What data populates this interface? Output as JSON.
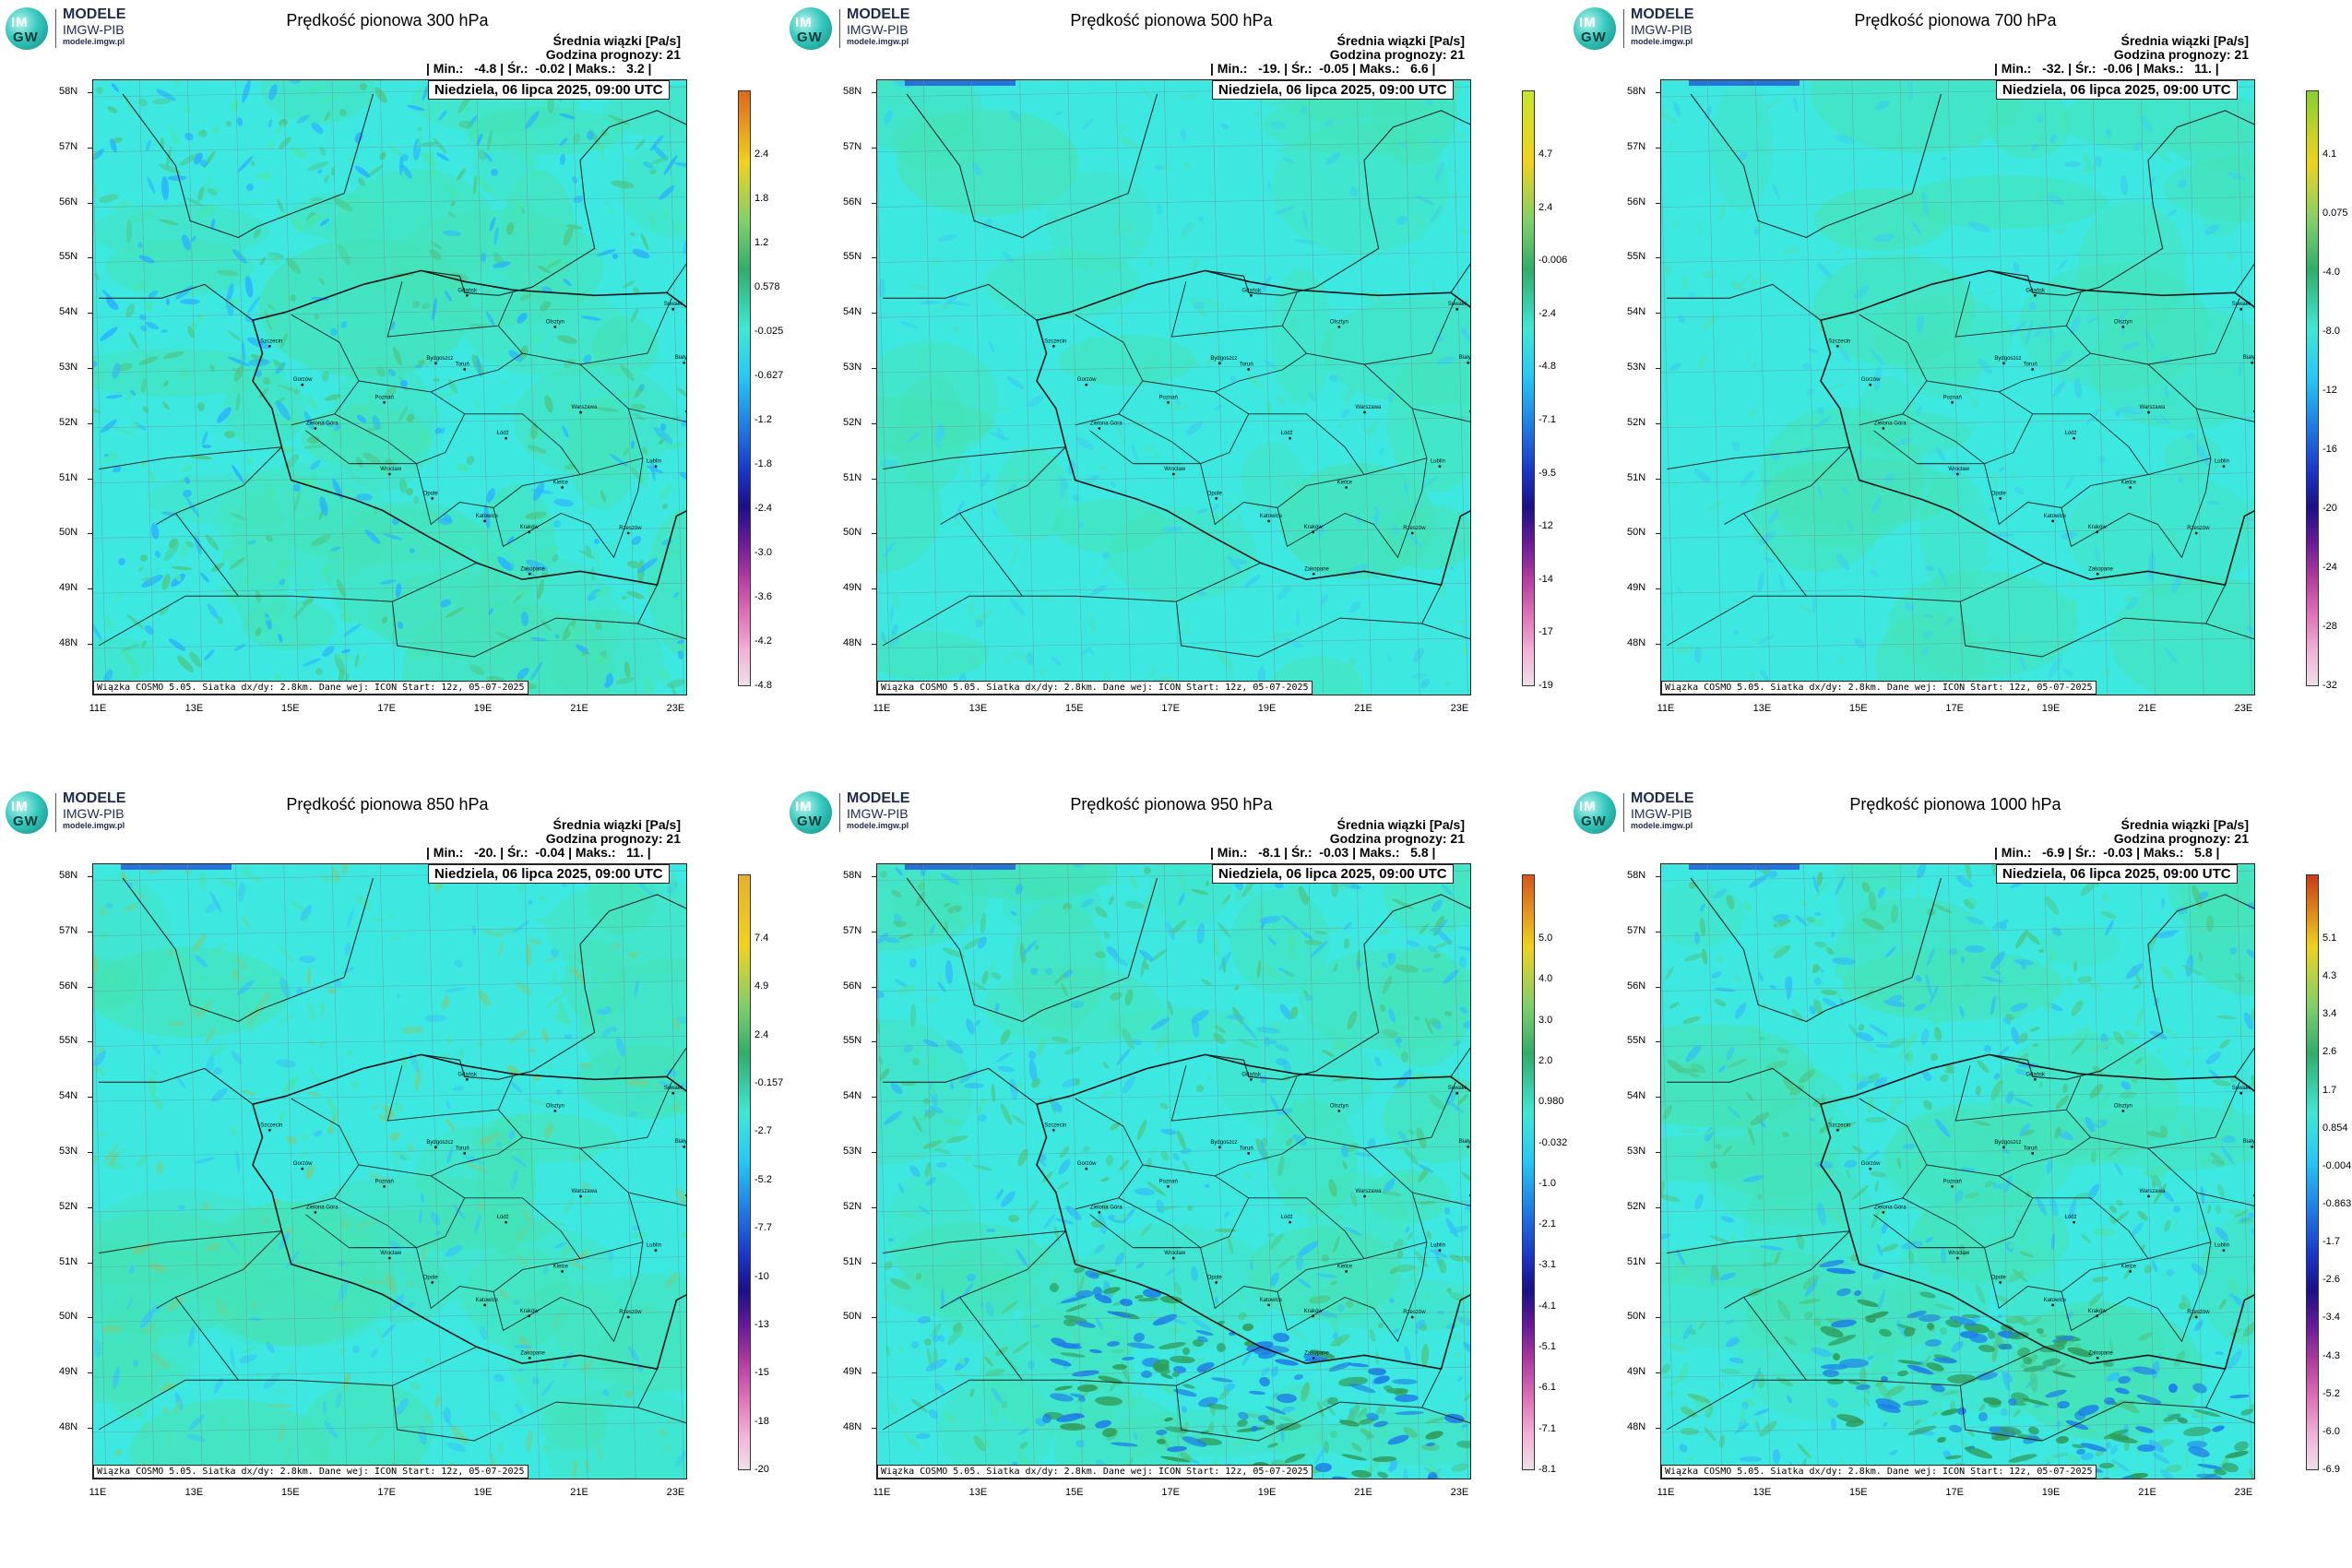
{
  "app": {
    "brand": "MODELE",
    "org": "IMGW-PIB",
    "site": "modele.imgw.pl",
    "logo_text_top": "IM",
    "logo_text_bottom": "GW"
  },
  "common": {
    "mean_label": "Średnia wiązki [Pa/s]",
    "forecast_hour": "Godzina prognozy: 21",
    "date": "Niedziela, 06 lipca 2025, 09:00 UTC",
    "footer": "Wiązka COSMO 5.05. Siatka dx/dy: 2.8km. Dane wej: ICON Start: 12z, 05-07-2025",
    "lat_labels": [
      "58N",
      "57N",
      "56N",
      "55N",
      "54N",
      "53N",
      "52N",
      "51N",
      "50N",
      "49N",
      "48N"
    ],
    "lon_labels": [
      "11E",
      "13E",
      "15E",
      "17E",
      "19E",
      "21E",
      "23E"
    ]
  },
  "cities": [
    {
      "name": "Gdańsk",
      "lon": 18.65,
      "lat": 54.35
    },
    {
      "name": "Olsztyn",
      "lon": 20.48,
      "lat": 53.78
    },
    {
      "name": "Suwałki",
      "lon": 22.93,
      "lat": 54.1
    },
    {
      "name": "Białystok",
      "lon": 23.16,
      "lat": 53.13
    },
    {
      "name": "Szczecin",
      "lon": 14.55,
      "lat": 53.43
    },
    {
      "name": "Gorzów",
      "lon": 15.23,
      "lat": 52.73
    },
    {
      "name": "Bydgoszcz",
      "lon": 18.0,
      "lat": 53.12
    },
    {
      "name": "Toruń",
      "lon": 18.6,
      "lat": 53.01
    },
    {
      "name": "Poznań",
      "lon": 16.93,
      "lat": 52.41
    },
    {
      "name": "Warszawa",
      "lon": 21.01,
      "lat": 52.23
    },
    {
      "name": "Zielona Góra",
      "lon": 15.5,
      "lat": 51.94
    },
    {
      "name": "Łódź",
      "lon": 19.46,
      "lat": 51.76
    },
    {
      "name": "Lublin",
      "lon": 22.57,
      "lat": 51.25
    },
    {
      "name": "Wrocław",
      "lon": 17.04,
      "lat": 51.11
    },
    {
      "name": "Opole",
      "lon": 17.93,
      "lat": 50.67
    },
    {
      "name": "Kielce",
      "lon": 20.63,
      "lat": 50.87
    },
    {
      "name": "Katowice",
      "lon": 19.02,
      "lat": 50.26
    },
    {
      "name": "Kraków",
      "lon": 19.94,
      "lat": 50.06
    },
    {
      "name": "Rzeszów",
      "lon": 22.0,
      "lat": 50.04
    },
    {
      "name": "Zakopane",
      "lon": 19.95,
      "lat": 49.3
    }
  ],
  "panels": [
    {
      "title": "Prędkość pionowa 300 hPa",
      "stats": "| Min.:   -4.8 | Śr.:  -0.02 | Maks.:   3.2 |",
      "colorbar_ticks": [
        "2.4",
        "1.8",
        "1.2",
        "0.578",
        "-0.025",
        "-0.627",
        "-1.2",
        "-1.8",
        "-2.4",
        "-3.0",
        "-3.6",
        "-4.2",
        "-4.8"
      ],
      "colorbar_max": "#e0661a",
      "style": "rough"
    },
    {
      "title": "Prędkość pionowa 500 hPa",
      "stats": "| Min.:   -19. | Śr.:  -0.05 | Maks.:   6.6 |",
      "colorbar_ticks": [
        "4.7",
        "2.4",
        "-0.006",
        "-2.4",
        "-4.8",
        "-7.1",
        "-9.5",
        "-12",
        "-14",
        "-17",
        "-19"
      ],
      "colorbar_max": "#c8e62a",
      "style": "smooth"
    },
    {
      "title": "Prędkość pionowa 700 hPa",
      "stats": "| Min.:   -32. | Śr.:  -0.06 | Maks.:   11. |",
      "colorbar_ticks": [
        "4.1",
        "0.075",
        "-4.0",
        "-8.0",
        "-12",
        "-16",
        "-20",
        "-24",
        "-28",
        "-32"
      ],
      "colorbar_max": "#86d22e",
      "style": "smooth"
    },
    {
      "title": "Prędkość pionowa 850 hPa",
      "stats": "| Min.:   -20. | Śr.:  -0.04 | Maks.:   11. |",
      "colorbar_ticks": [
        "7.4",
        "4.9",
        "2.4",
        "-0.157",
        "-2.7",
        "-5.2",
        "-7.7",
        "-10",
        "-13",
        "-15",
        "-18",
        "-20"
      ],
      "colorbar_max": "#e8b02a",
      "style": "medium"
    },
    {
      "title": "Prędkość pionowa 950 hPa",
      "stats": "| Min.:   -8.1 | Śr.:  -0.03 | Maks.:   5.8 |",
      "colorbar_ticks": [
        "5.0",
        "4.0",
        "3.0",
        "2.0",
        "0.980",
        "-0.032",
        "-1.0",
        "-2.1",
        "-3.1",
        "-4.1",
        "-5.1",
        "-6.1",
        "-7.1",
        "-8.1"
      ],
      "colorbar_max": "#d9541a",
      "style": "mountain"
    },
    {
      "title": "Prędkość pionowa 1000 hPa",
      "stats": "| Min.:   -6.9 | Śr.:  -0.03 | Maks.:   5.8 |",
      "colorbar_ticks": [
        "5.1",
        "4.3",
        "3.4",
        "2.6",
        "1.7",
        "0.854",
        "-0.004",
        "-0.863",
        "-1.7",
        "-2.6",
        "-3.4",
        "-4.3",
        "-5.2",
        "-6.0",
        "-6.9"
      ],
      "colorbar_max": "#cc3a14",
      "style": "mountain"
    }
  ]
}
